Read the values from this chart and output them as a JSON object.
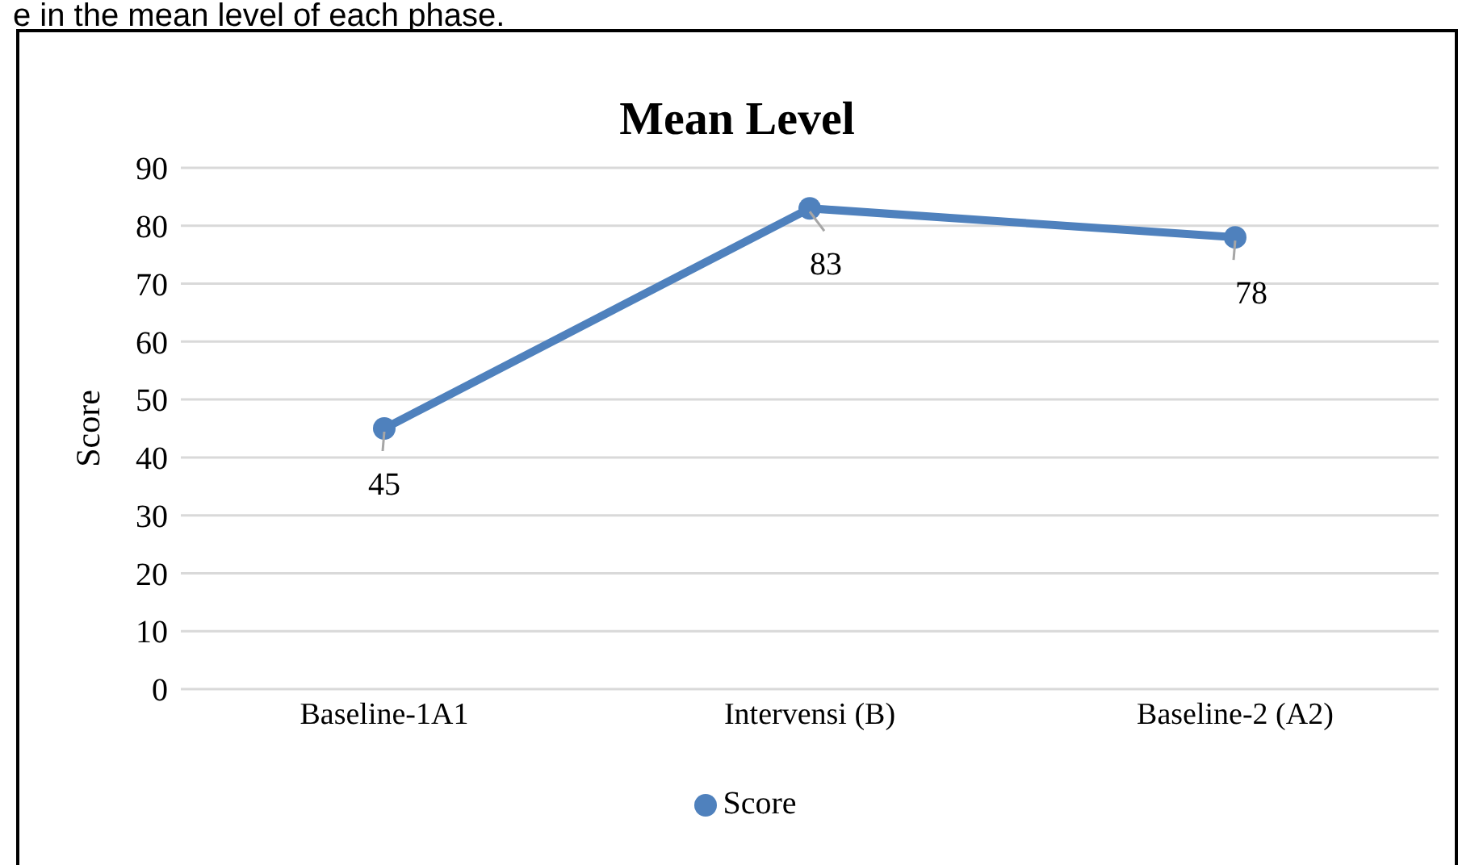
{
  "chart_data": {
    "type": "line",
    "title": "Mean Level",
    "ylabel": "Score",
    "annotations": [
      "e in the mean level of each phase."
    ],
    "categories": [
      "Baseline-1A1",
      "Intervensi (B)",
      "Baseline-2 (A2)"
    ],
    "series": [
      {
        "name": "Score",
        "color": "#4f81bd",
        "values": [
          45,
          83,
          78
        ]
      }
    ],
    "ylim": [
      0,
      90
    ],
    "yticks": [
      0,
      10,
      20,
      30,
      40,
      50,
      60,
      70,
      80,
      90
    ],
    "grid": "y",
    "legend": "bottom",
    "marker": "circle",
    "line_style": "solid",
    "data_labels": true
  }
}
